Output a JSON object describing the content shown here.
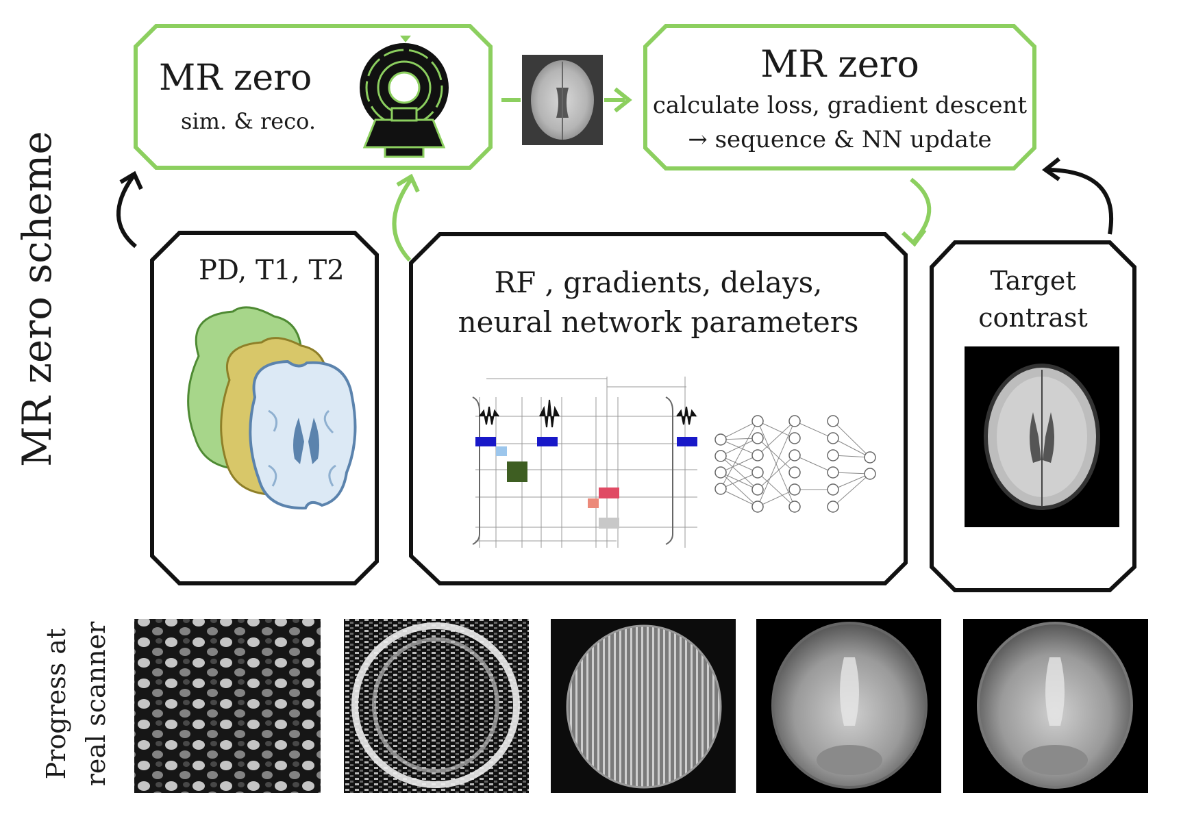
{
  "scheme_title": "MR zero scheme",
  "sim_box": {
    "title": "MR zero",
    "subtitle": "sim. & reco."
  },
  "loss_box": {
    "title": "MR zero",
    "line1": "calculate loss, gradient descent",
    "line2": "→ sequence & NN update"
  },
  "tissue_box": {
    "title": "PD, T1, T2"
  },
  "params_box": {
    "line1": "RF , gradients, delays,",
    "line2": "neural network parameters"
  },
  "target_box": {
    "line1": "Target",
    "line2": "contrast"
  },
  "progress_label": {
    "line1": "Progress at",
    "line2": "real scanner"
  },
  "progress_images": 5,
  "colors": {
    "green": "#8ccf5f",
    "black": "#111111",
    "tissue_green": "#a7d68a",
    "tissue_yellow": "#d8c769",
    "tissue_blue": "#dce9f5",
    "ventricle": "#5b83ad",
    "rf_blue": "#1818c8",
    "light_blue": "#9cc6ec",
    "dark_green": "#3e5e22",
    "pink": "#e04a64",
    "salmon": "#ec8a7a",
    "gray": "#c8c8c8"
  }
}
